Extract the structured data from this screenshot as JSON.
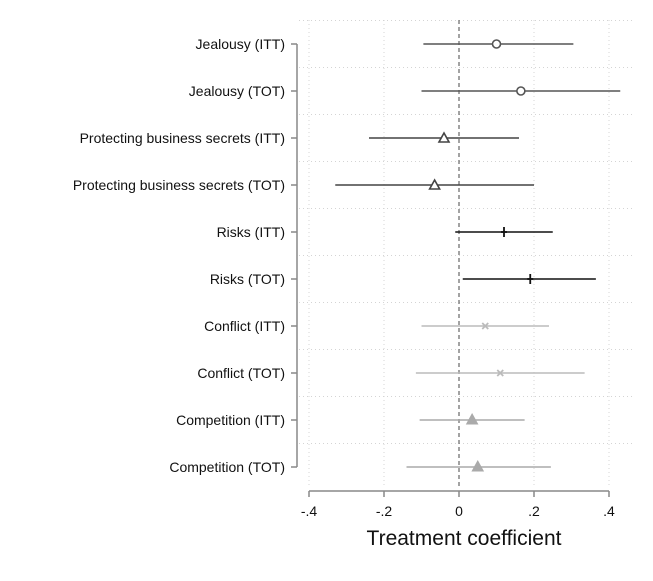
{
  "chart_data": {
    "type": "coefficient_plot",
    "xlabel": "Treatment coefficient",
    "xlim": [
      -0.4,
      0.4
    ],
    "xticks": [
      -0.4,
      -0.2,
      0,
      0.2,
      0.4
    ],
    "xtick_labels": [
      "-.4",
      "-.2",
      "0",
      ".2",
      ".4"
    ],
    "reference_line": 0,
    "grid": true,
    "rows": [
      {
        "label": "Jealousy (ITT)",
        "estimate": 0.1,
        "ci_low": -0.095,
        "ci_high": 0.305,
        "marker": "circle",
        "color": "#555555"
      },
      {
        "label": "Jealousy (TOT)",
        "estimate": 0.165,
        "ci_low": -0.1,
        "ci_high": 0.43,
        "marker": "circle",
        "color": "#555555"
      },
      {
        "label": "Protecting business secrets (ITT)",
        "estimate": -0.04,
        "ci_low": -0.24,
        "ci_high": 0.16,
        "marker": "triangle-open",
        "color": "#444444"
      },
      {
        "label": "Protecting business secrets (TOT)",
        "estimate": -0.065,
        "ci_low": -0.33,
        "ci_high": 0.2,
        "marker": "triangle-open",
        "color": "#444444"
      },
      {
        "label": "Risks (ITT)",
        "estimate": 0.12,
        "ci_low": -0.01,
        "ci_high": 0.25,
        "marker": "plus",
        "color": "#111111"
      },
      {
        "label": "Risks (TOT)",
        "estimate": 0.19,
        "ci_low": 0.01,
        "ci_high": 0.365,
        "marker": "plus",
        "color": "#111111"
      },
      {
        "label": "Conflict (ITT)",
        "estimate": 0.07,
        "ci_low": -0.1,
        "ci_high": 0.24,
        "marker": "x",
        "color": "#bbbbbb"
      },
      {
        "label": "Conflict (TOT)",
        "estimate": 0.11,
        "ci_low": -0.115,
        "ci_high": 0.335,
        "marker": "x",
        "color": "#bbbbbb"
      },
      {
        "label": "Competition (ITT)",
        "estimate": 0.035,
        "ci_low": -0.105,
        "ci_high": 0.175,
        "marker": "triangle-filled",
        "color": "#aaaaaa"
      },
      {
        "label": "Competition (TOT)",
        "estimate": 0.05,
        "ci_low": -0.14,
        "ci_high": 0.245,
        "marker": "triangle-filled",
        "color": "#aaaaaa"
      }
    ]
  }
}
